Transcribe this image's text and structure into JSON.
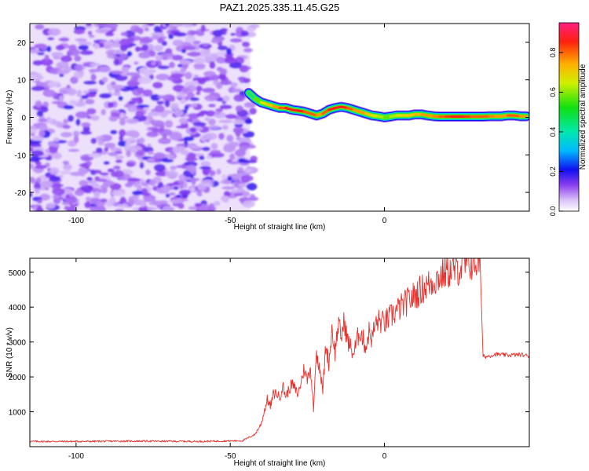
{
  "title": "PAZ1.2025.335.11.45.G25",
  "chart_data": [
    {
      "type": "heatmap",
      "name": "spectrogram",
      "xlabel": "Height of straight line (km)",
      "ylabel": "Frequency (Hz)",
      "xlim": [
        -115,
        47
      ],
      "ylim": [
        -25,
        25
      ],
      "xticks": [
        -100,
        -50,
        0
      ],
      "yticks": [
        -20,
        -10,
        0,
        10,
        20
      ],
      "noise_region_x": [
        -115,
        -42
      ],
      "ridge_x": [
        -44,
        -42,
        -40,
        -38,
        -36,
        -34,
        -32,
        -30,
        -28,
        -26,
        -24,
        -22,
        -20,
        -18,
        -16,
        -14,
        -12,
        -10,
        -8,
        -6,
        -4,
        -2,
        0,
        2,
        4,
        6,
        8,
        10,
        12,
        14,
        16,
        18,
        20,
        22,
        24,
        26,
        28,
        30,
        32,
        34,
        36,
        38,
        40,
        42,
        44,
        46
      ],
      "ridge_freq": [
        6.5,
        5.0,
        4.0,
        3.5,
        3.0,
        2.5,
        2.5,
        2.0,
        1.8,
        1.5,
        1.0,
        0.5,
        1.0,
        2.0,
        2.5,
        2.8,
        2.5,
        2.0,
        1.5,
        1.0,
        0.5,
        0.3,
        0.0,
        0.2,
        0.5,
        0.5,
        0.5,
        0.8,
        0.8,
        0.5,
        0.3,
        0.2,
        0.2,
        0.2,
        0.2,
        0.2,
        0.2,
        0.2,
        0.2,
        0.3,
        0.3,
        0.3,
        0.5,
        0.5,
        0.3,
        0.3
      ],
      "ridge_amplitude": [
        0.45,
        0.6,
        0.7,
        0.75,
        0.8,
        0.85,
        0.9,
        0.92,
        0.9,
        0.85,
        0.85,
        0.8,
        0.85,
        0.9,
        0.92,
        0.9,
        0.85,
        0.8,
        0.8,
        0.75,
        0.7,
        0.65,
        0.6,
        0.65,
        0.7,
        0.72,
        0.75,
        0.78,
        0.8,
        0.8,
        0.82,
        0.85,
        0.88,
        0.9,
        0.9,
        0.88,
        0.85,
        0.85,
        0.85,
        0.82,
        0.8,
        0.8,
        0.85,
        0.85,
        0.8,
        0.78
      ],
      "colorbar": {
        "label": "Normalized spectral amplitude",
        "range": [
          0,
          0.95
        ],
        "ticks": [
          "0.0",
          "0.2",
          "0.4",
          "0.6",
          "0.8"
        ]
      }
    },
    {
      "type": "line",
      "name": "snr",
      "xlabel": "Height of straight line (km)",
      "ylabel": "SNR (10 * v/v)",
      "xlim": [
        -115,
        47
      ],
      "ylim": [
        0,
        5400
      ],
      "xticks": [
        -100,
        -50,
        0
      ],
      "yticks": [
        1000,
        2000,
        3000,
        4000,
        5000
      ],
      "color": "#e8302c",
      "x": [
        -115,
        -100,
        -80,
        -60,
        -46,
        -42,
        -40,
        -38,
        -37,
        -36,
        -35,
        -34,
        -33,
        -32,
        -30,
        -28,
        -26,
        -25,
        -24,
        -23,
        -22,
        -21,
        -20,
        -19,
        -18,
        -17,
        -16,
        -15,
        -14,
        -13,
        -12,
        -10,
        -8,
        -6,
        -5,
        -4,
        -3,
        -2,
        0,
        4,
        8,
        12,
        16,
        20,
        24,
        28,
        31,
        32,
        33,
        36,
        40,
        44,
        47
      ],
      "values": [
        150,
        150,
        160,
        150,
        170,
        350,
        650,
        1350,
        1150,
        1500,
        1550,
        1400,
        1750,
        1450,
        1800,
        1500,
        2250,
        1900,
        2300,
        1100,
        2700,
        2300,
        1600,
        2900,
        2400,
        3400,
        2700,
        3500,
        3150,
        3600,
        3050,
        2650,
        3350,
        2850,
        3300,
        3100,
        3500,
        3600,
        3550,
        3900,
        4200,
        4500,
        4750,
        5000,
        5100,
        5250,
        5300,
        2600,
        2580,
        2650,
        2620,
        2640,
        2600
      ]
    }
  ]
}
